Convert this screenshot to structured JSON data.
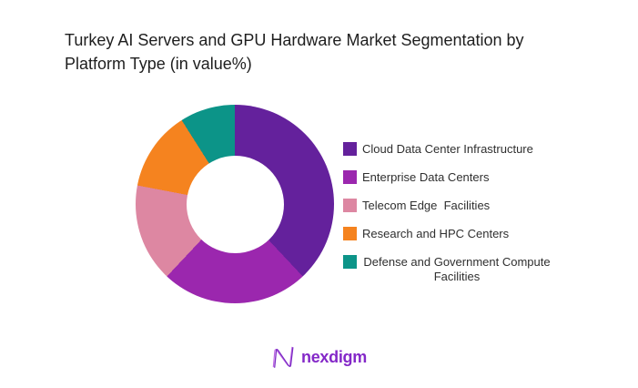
{
  "header": {
    "title": "Turkey AI Servers and GPU Hardware Market Segmentation by Platform Type (in value%)"
  },
  "chart_data": {
    "type": "pie",
    "subtype": "donut",
    "title": "Turkey AI Servers and GPU Hardware Market Segmentation by Platform Type (in value%)",
    "unit": "value %",
    "categories": [
      "Cloud Data Center Infrastructure",
      "Enterprise Data Centers",
      "Telecom Edge  Facilities",
      "Research and HPC Centers",
      "Defense and Government Compute Facilities"
    ],
    "values": [
      38,
      24,
      16,
      13,
      9
    ],
    "values_are_estimated_from_arc_angles": true,
    "data_labels_shown": false,
    "colors": [
      "#64219C",
      "#9B27AE",
      "#DD87A2",
      "#F5831F",
      "#0C9488"
    ],
    "start_angle_deg": 0,
    "direction": "clockwise",
    "inner_radius_ratio": 0.48,
    "legend_position": "right",
    "legend_two_line_item_index": 4
  },
  "footer": {
    "logo_text": "nexdigm",
    "logo_color": "#8428C8",
    "logo_mark": "nexdigm-n-wave-icon"
  }
}
